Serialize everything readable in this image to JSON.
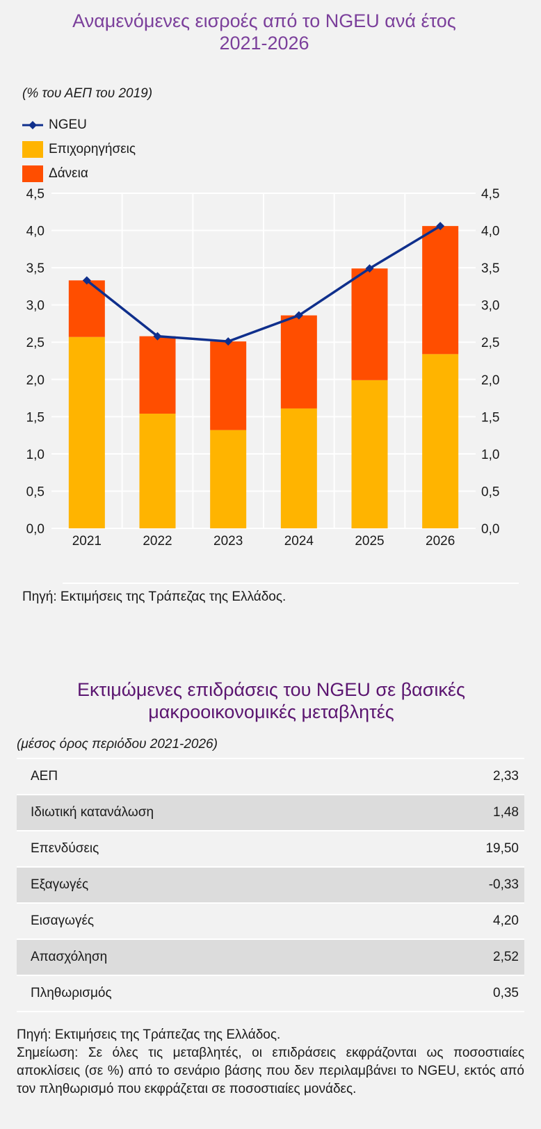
{
  "chart": {
    "title_line1": "Αναμενόμενες εισροές από το NGEU ανά έτος",
    "title_line2": "2021-2026",
    "unit": "(% του ΑΕΠ του 2019)",
    "source": "Πηγή: Εκτιμήσεις της Τράπεζας της Ελλάδος."
  },
  "chart_data": {
    "type": "bar",
    "stacked": true,
    "categories": [
      "2021",
      "2022",
      "2023",
      "2024",
      "2025",
      "2026"
    ],
    "series": [
      {
        "name": "Επιχορηγήσεις",
        "kind": "bar",
        "color": "#ffb400",
        "values": [
          2.57,
          1.54,
          1.32,
          1.61,
          1.99,
          2.34
        ]
      },
      {
        "name": "Δάνεια",
        "kind": "bar",
        "color": "#ff4e00",
        "values": [
          0.76,
          1.04,
          1.19,
          1.25,
          1.5,
          1.72
        ]
      },
      {
        "name": "NGEU",
        "kind": "line",
        "color": "#0f2f8c",
        "values": [
          3.33,
          2.58,
          2.51,
          2.86,
          3.49,
          4.06
        ]
      }
    ],
    "ylim": [
      0,
      4.5
    ],
    "yticks": [
      "0,0",
      "0,5",
      "1,0",
      "1,5",
      "2,0",
      "2,5",
      "3,0",
      "3,5",
      "4,0",
      "4,5"
    ],
    "ytick_values": [
      0,
      0.5,
      1,
      1.5,
      2,
      2.5,
      3,
      3.5,
      4,
      4.5
    ],
    "grid": true,
    "legend_position": "top-left",
    "secondary_axis": "right"
  },
  "table": {
    "title_line1": "Εκτιμώμενες επιδράσεις του NGEU σε βασικές",
    "title_line2": "μακροοικονομικές μεταβλητές",
    "subtitle": "(μέσος όρος περιόδου 2021-2026)",
    "rows": [
      {
        "label": "ΑΕΠ",
        "value": "2,33"
      },
      {
        "label": "Ιδιωτική κατανάλωση",
        "value": "1,48"
      },
      {
        "label": "Επενδύσεις",
        "value": "19,50"
      },
      {
        "label": "Εξαγωγές",
        "value": "-0,33"
      },
      {
        "label": "Εισαγωγές",
        "value": "4,20"
      },
      {
        "label": "Απασχόληση",
        "value": "2,52"
      },
      {
        "label": "Πληθωρισμός",
        "value": "0,35"
      }
    ],
    "source": "Πηγή: Εκτιμήσεις της Τράπεζας της Ελλάδος.",
    "note": "Σημείωση: Σε όλες τις μεταβλητές, οι επιδράσεις εκφράζονται ως ποσοστιαίες αποκλίσεις (σε %) από το σενάριο βάσης που δεν περιλαμβάνει το NGEU, εκτός από τον πληθωρισμό που εκφράζεται σε ποσοστιαίες μονάδες."
  }
}
